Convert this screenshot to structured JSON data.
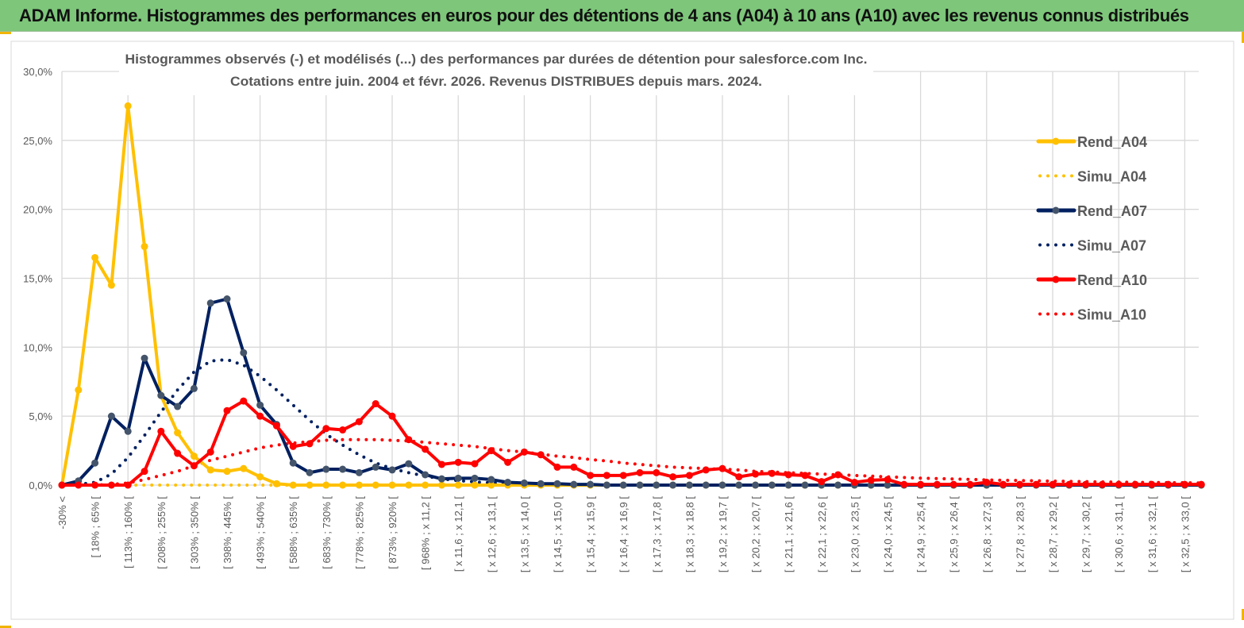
{
  "header": {
    "title": "ADAM Informe. Histogrammes des performances en euros pour des détentions de 4 ans (A04) à 10 ans (A10) avec les revenus connus distribués"
  },
  "colors": {
    "header_bg": "#7dc67a",
    "a04": "#ffc000",
    "a07": "#002060",
    "a07_marker": "#44546a",
    "a10": "#ff0000",
    "grid": "#d9d9d9",
    "text": "#595959"
  },
  "chart_data": {
    "type": "line",
    "title": "Histogrammes observés (-) et modélisés (...) des performances par durées de détention pour salesforce.com Inc.",
    "subtitle": "Cotations entre juin. 2004 et févr. 2026. Revenus DISTRIBUES depuis mars. 2024.",
    "ylim": [
      0,
      30
    ],
    "yticks": [
      "0,0%",
      "5,0%",
      "10,0%",
      "15,0%",
      "20,0%",
      "25,0%",
      "30,0%"
    ],
    "grid": true,
    "legend_position": "right",
    "xtick_labels": [
      "-30% <",
      "[ 18% ; 65% [",
      "[ 113% ; 160% [",
      "[ 208% ; 255% [",
      "[ 303% ; 350% [",
      "[ 398% ; 445% [",
      "[ 493% ; 540% [",
      "[ 588% ; 635% [",
      "[ 683% ; 730% [",
      "[ 778% ; 825% [",
      "[ 873% ; 920% [",
      "[ 968% ; x 11,2 [",
      "[ x 11,6 ; x 12,1 [",
      "[ x 12,6 ; x 13,1 [",
      "[ x 13,5 ; x 14,0 [",
      "[ x 14,5 ; x 15,0 [",
      "[ x 15,4 ; x 15,9 [",
      "[ x 16,4 ; x 16,9 [",
      "[ x 17,3 ; x 17,8 [",
      "[ x 18,3 ; x 18,8 [",
      "[ x 19,2 ; x 19,7 [",
      "[ x 20,2 ; x 20,7 [",
      "[ x 21,1 ; x 21,6 [",
      "[ x 22,1 ; x 22,6 [",
      "[ x 23,0 ; x 23,5 [",
      "[ x 24,0 ; x 24,5 [",
      "[ x 24,9 ; x 25,4 [",
      "[ x 25,9 ; x 26,4 [",
      "[ x 26,8 ; x 27,3 [",
      "[ x 27,8 ; x 28,3 [",
      "[ x 28,7 ; x 29,2 [",
      "[ x 29,7 ; x 30,2 [",
      "[ x 30,6 ; x 31,1 [",
      "[ x 31,6 ; x 32,1 [",
      "[ x 32,5 ; x 33,0 ["
    ],
    "series": [
      {
        "name": "Rend_A04",
        "style": "solid-markers",
        "color": "#ffc000",
        "values": [
          0,
          6.9,
          16.5,
          14.5,
          27.5,
          17.3,
          6.5,
          3.8,
          2.1,
          1.1,
          1.0,
          1.2,
          0.6,
          0.1,
          0,
          0,
          0,
          0,
          0,
          0,
          0,
          0,
          0,
          0,
          0,
          0,
          0,
          0,
          0,
          0,
          0,
          0,
          0,
          0,
          0,
          0,
          0,
          0,
          0,
          0,
          0,
          0,
          0,
          0,
          0,
          0,
          0,
          0,
          0,
          0,
          0,
          0,
          0,
          0,
          0,
          0,
          0,
          0,
          0,
          0,
          0,
          0,
          0,
          0,
          0,
          0,
          0,
          0,
          0,
          0
        ]
      },
      {
        "name": "Simu_A04",
        "style": "dotted",
        "color": "#ffc000",
        "values": [
          0,
          0,
          0,
          0,
          0,
          0,
          0,
          0,
          0,
          0,
          0,
          0,
          0,
          0,
          0,
          0,
          0,
          0,
          0,
          0,
          0,
          0,
          0,
          0,
          0,
          0,
          0,
          0,
          0,
          0,
          0,
          0,
          0,
          0,
          0,
          0,
          0,
          0,
          0,
          0,
          0,
          0,
          0,
          0,
          0,
          0,
          0,
          0,
          0,
          0,
          0,
          0,
          0,
          0,
          0,
          0,
          0,
          0,
          0,
          0,
          0,
          0,
          0,
          0,
          0,
          0,
          0,
          0,
          0,
          0
        ]
      },
      {
        "name": "Rend_A07",
        "style": "solid-markers",
        "color": "#002060",
        "values": [
          0,
          0.3,
          1.6,
          5.0,
          3.9,
          9.2,
          6.5,
          5.7,
          7.0,
          13.2,
          13.5,
          9.6,
          5.8,
          4.4,
          1.6,
          0.9,
          1.15,
          1.15,
          0.9,
          1.3,
          1.1,
          1.55,
          0.75,
          0.45,
          0.5,
          0.5,
          0.4,
          0.2,
          0.15,
          0.1,
          0.1,
          0.05,
          0.05,
          0,
          0,
          0,
          0,
          0,
          0,
          0,
          0,
          0,
          0,
          0,
          0,
          0,
          0,
          0,
          0,
          0,
          0,
          0,
          0,
          0,
          0,
          0,
          0,
          0,
          0,
          0,
          0,
          0,
          0,
          0,
          0,
          0,
          0,
          0,
          0,
          0
        ]
      },
      {
        "name": "Simu_A07",
        "style": "dotted",
        "color": "#002060",
        "values": [
          0,
          0.05,
          0.2,
          0.8,
          2.0,
          3.6,
          5.3,
          6.9,
          8.2,
          9.0,
          9.1,
          8.7,
          7.9,
          6.9,
          5.8,
          4.7,
          3.7,
          2.9,
          2.2,
          1.6,
          1.2,
          0.9,
          0.65,
          0.45,
          0.33,
          0.23,
          0.16,
          0.11,
          0.08,
          0.05,
          0.03,
          0.02,
          0.01,
          0,
          0,
          0,
          0,
          0,
          0,
          0,
          0,
          0,
          0,
          0,
          0,
          0,
          0,
          0,
          0,
          0,
          0,
          0,
          0,
          0,
          0,
          0,
          0,
          0,
          0,
          0,
          0,
          0,
          0,
          0,
          0,
          0,
          0,
          0,
          0,
          0
        ]
      },
      {
        "name": "Rend_A10",
        "style": "solid-markers",
        "color": "#ff0000",
        "values": [
          0,
          0,
          0,
          0,
          0,
          1.0,
          3.9,
          2.3,
          1.4,
          2.4,
          5.4,
          6.1,
          5.0,
          4.3,
          2.8,
          3.0,
          4.1,
          4.0,
          4.6,
          5.9,
          5.0,
          3.3,
          2.6,
          1.5,
          1.65,
          1.55,
          2.5,
          1.65,
          2.4,
          2.2,
          1.3,
          1.3,
          0.7,
          0.7,
          0.7,
          0.9,
          0.9,
          0.6,
          0.7,
          1.1,
          1.2,
          0.6,
          0.8,
          0.85,
          0.75,
          0.7,
          0.25,
          0.75,
          0.2,
          0.35,
          0.4,
          0.05,
          0.05,
          0.05,
          0.05,
          0.05,
          0.2,
          0.05,
          0.05,
          0.05,
          0.05,
          0.05,
          0.05,
          0.05,
          0.05,
          0.05,
          0.05,
          0.05,
          0.05,
          0.05
        ]
      },
      {
        "name": "Simu_A10",
        "style": "dotted",
        "color": "#ff0000",
        "values": [
          0,
          0,
          0,
          0.05,
          0.15,
          0.4,
          0.7,
          1.0,
          1.4,
          1.8,
          2.1,
          2.4,
          2.7,
          2.9,
          3.05,
          3.15,
          3.25,
          3.3,
          3.3,
          3.3,
          3.25,
          3.2,
          3.1,
          3.0,
          2.9,
          2.8,
          2.65,
          2.5,
          2.4,
          2.25,
          2.1,
          2.0,
          1.85,
          1.75,
          1.6,
          1.5,
          1.4,
          1.3,
          1.25,
          1.2,
          1.15,
          1.1,
          1.0,
          0.95,
          0.9,
          0.85,
          0.8,
          0.75,
          0.7,
          0.65,
          0.6,
          0.55,
          0.5,
          0.47,
          0.44,
          0.41,
          0.38,
          0.35,
          0.33,
          0.31,
          0.29,
          0.27,
          0.25,
          0.23,
          0.22,
          0.2,
          0.19,
          0.18,
          0.17,
          0.16
        ]
      }
    ]
  }
}
